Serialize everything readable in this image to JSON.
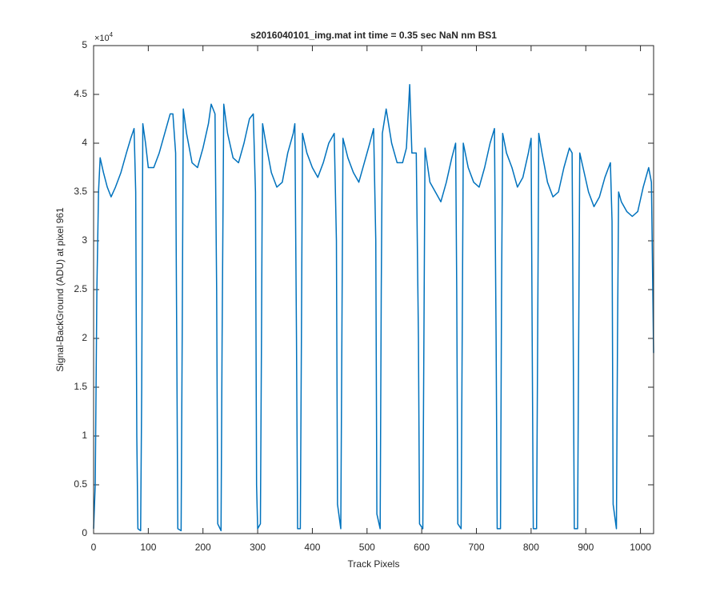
{
  "chart_data": {
    "type": "line",
    "title": "s2016040101_img.mat int time = 0.35 sec  NaN nm BS1",
    "x_label": "Track Pixels",
    "y_label": "Signal-BackGround (ADU) at pixel 961",
    "y_multiplier_base": "×10",
    "y_multiplier_exponent": "4",
    "color": "#0072bd",
    "xlim": [
      0,
      1024
    ],
    "xticks": [
      0,
      100,
      200,
      300,
      400,
      500,
      600,
      700,
      800,
      900,
      1000
    ],
    "ylim": [
      0,
      5
    ],
    "yticks": [
      0,
      0.5,
      1,
      1.5,
      2,
      2.5,
      3,
      3.5,
      4,
      4.5,
      5
    ],
    "x": [
      0,
      3,
      6,
      9,
      12,
      18,
      25,
      32,
      40,
      50,
      60,
      68,
      74,
      77,
      79,
      81,
      86,
      88,
      90,
      95,
      100,
      110,
      120,
      130,
      140,
      145,
      150,
      152,
      154,
      160,
      162,
      164,
      170,
      180,
      190,
      200,
      210,
      215,
      222,
      225,
      227,
      233,
      235,
      238,
      245,
      255,
      265,
      275,
      285,
      292,
      296,
      298,
      300,
      305,
      307,
      309,
      315,
      325,
      335,
      345,
      355,
      365,
      368,
      371,
      373,
      378,
      380,
      382,
      390,
      400,
      410,
      420,
      430,
      440,
      444,
      446,
      452,
      454,
      456,
      465,
      475,
      485,
      495,
      505,
      512,
      516,
      518,
      524,
      526,
      528,
      535,
      545,
      555,
      565,
      572,
      578,
      582,
      590,
      594,
      596,
      602,
      604,
      606,
      615,
      625,
      635,
      645,
      655,
      662,
      664,
      666,
      672,
      674,
      676,
      685,
      695,
      705,
      715,
      725,
      733,
      736,
      738,
      744,
      746,
      748,
      755,
      765,
      775,
      785,
      795,
      800,
      802,
      804,
      810,
      812,
      814,
      820,
      830,
      840,
      850,
      860,
      870,
      875,
      877,
      879,
      885,
      887,
      889,
      895,
      905,
      915,
      925,
      935,
      945,
      948,
      950,
      956,
      958,
      960,
      965,
      975,
      985,
      995,
      1005,
      1015,
      1020,
      1024
    ],
    "values": [
      0.05,
      0.5,
      2.5,
      3.5,
      3.85,
      3.7,
      3.55,
      3.45,
      3.55,
      3.7,
      3.9,
      4.05,
      4.15,
      3.5,
      1.0,
      0.05,
      0.03,
      1.5,
      4.2,
      4.0,
      3.75,
      3.75,
      3.9,
      4.1,
      4.3,
      4.3,
      3.9,
      2.0,
      0.05,
      0.03,
      2.0,
      4.35,
      4.1,
      3.8,
      3.75,
      3.95,
      4.2,
      4.4,
      4.3,
      2.5,
      0.1,
      0.03,
      2.0,
      4.4,
      4.1,
      3.85,
      3.8,
      4.0,
      4.25,
      4.3,
      3.5,
      0.5,
      0.05,
      0.1,
      2.0,
      4.2,
      4.0,
      3.7,
      3.55,
      3.6,
      3.9,
      4.1,
      4.2,
      2.0,
      0.05,
      0.05,
      2.0,
      4.1,
      3.9,
      3.75,
      3.65,
      3.8,
      4.0,
      4.1,
      3.0,
      0.3,
      0.05,
      2.0,
      4.05,
      3.85,
      3.7,
      3.6,
      3.8,
      4.0,
      4.15,
      3.0,
      0.2,
      0.05,
      2.5,
      4.1,
      4.35,
      4.0,
      3.8,
      3.8,
      3.95,
      4.6,
      3.9,
      3.9,
      2.0,
      0.1,
      0.05,
      2.0,
      3.95,
      3.6,
      3.5,
      3.4,
      3.6,
      3.85,
      4.0,
      2.5,
      0.1,
      0.05,
      2.0,
      4.0,
      3.75,
      3.6,
      3.55,
      3.75,
      4.0,
      4.15,
      2.0,
      0.05,
      0.05,
      2.5,
      4.1,
      3.9,
      3.75,
      3.55,
      3.65,
      3.9,
      4.05,
      2.0,
      0.05,
      0.05,
      2.0,
      4.1,
      3.9,
      3.6,
      3.45,
      3.5,
      3.75,
      3.95,
      3.9,
      2.0,
      0.05,
      0.05,
      2.0,
      3.9,
      3.75,
      3.5,
      3.35,
      3.45,
      3.65,
      3.8,
      3.2,
      0.3,
      0.05,
      2.0,
      3.5,
      3.4,
      3.3,
      3.25,
      3.3,
      3.55,
      3.75,
      3.6,
      1.85
    ]
  }
}
